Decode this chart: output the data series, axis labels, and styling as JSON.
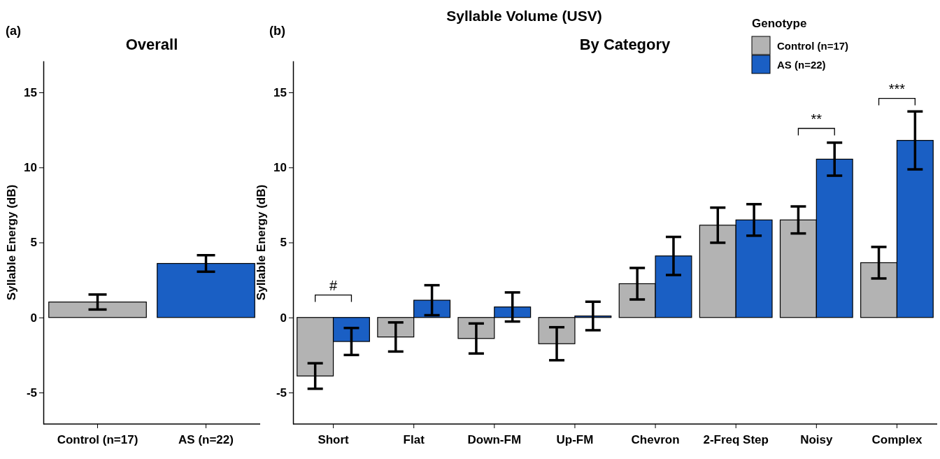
{
  "chart_data": [
    {
      "type": "bar",
      "title": "Overall",
      "ylabel": "Syllable Energy (dB)",
      "categories": [
        "Control (n=17)",
        "AS (n=22)"
      ],
      "values": [
        1.03,
        3.6
      ],
      "colors": [
        "#b3b3b3",
        "#1a5fc4"
      ],
      "errors": [
        0.5,
        0.55
      ],
      "ylim": [
        -7.1,
        17.1
      ],
      "yticks": [
        -5,
        0,
        5,
        10,
        15
      ],
      "annotations": [
        "(a)"
      ]
    },
    {
      "type": "bar",
      "title": "Syllable Volume (USV)",
      "subtitle": "By Category",
      "ylabel": "Syllable Energy (dB)",
      "legend_title": "Genotype",
      "legend": "top right",
      "categories": [
        "Short",
        "Flat",
        "Down-FM",
        "Up-FM",
        "Chevron",
        "2-Freq Step",
        "Noisy",
        "Complex"
      ],
      "series": [
        {
          "name": "Control (n=17)",
          "color": "#b3b3b3",
          "values": [
            -3.9,
            -1.3,
            -1.4,
            -1.75,
            2.25,
            6.15,
            6.5,
            3.65
          ],
          "errors": [
            0.85,
            0.97,
            1.0,
            1.1,
            1.05,
            1.17,
            0.9,
            1.05
          ]
        },
        {
          "name": "AS (n=22)",
          "color": "#1a5fc4",
          "values": [
            -1.6,
            1.15,
            0.7,
            0.1,
            4.1,
            6.5,
            10.55,
            11.8
          ],
          "errors": [
            0.9,
            1.0,
            0.97,
            0.95,
            1.27,
            1.05,
            1.1,
            1.93
          ]
        }
      ],
      "ylim": [
        -7.1,
        17.1
      ],
      "yticks": [
        -5,
        0,
        5,
        10,
        15
      ],
      "annotations": [
        "(b)",
        "#",
        "**",
        "***"
      ]
    }
  ]
}
